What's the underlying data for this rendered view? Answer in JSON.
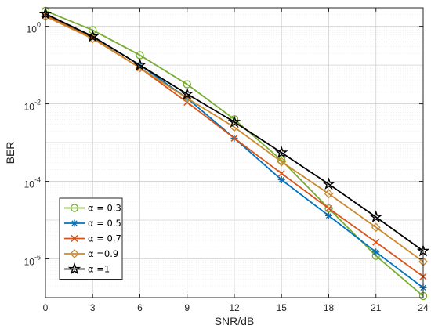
{
  "chart_data": {
    "type": "line",
    "xlabel": "SNR/dB",
    "ylabel": "BER",
    "x": [
      0,
      3,
      6,
      9,
      12,
      15,
      18,
      21,
      24
    ],
    "xlim": [
      0,
      24
    ],
    "ylim": [
      1e-07,
      3
    ],
    "y_scale": "log",
    "grid": true,
    "minor_grid": true,
    "legend_position": "lower-left",
    "x_ticks": [
      "0",
      "3",
      "6",
      "9",
      "12",
      "15",
      "18",
      "21",
      "24"
    ],
    "y_ticks": [
      {
        "value": 1,
        "base": "10",
        "exp": "0"
      },
      {
        "value": 0.01,
        "base": "10",
        "exp": "-2"
      },
      {
        "value": 0.0001,
        "base": "10",
        "exp": "-4"
      },
      {
        "value": 1e-06,
        "base": "10",
        "exp": "-6"
      }
    ],
    "series": [
      {
        "name": "α = 0.3",
        "color": "#77AC30",
        "marker": "circle",
        "values": [
          2.5,
          0.8,
          0.18,
          0.032,
          0.004,
          0.00035,
          2e-05,
          1.2e-06,
          1.1e-07
        ]
      },
      {
        "name": "α = 0.5",
        "color": "#0072BD",
        "marker": "asterisk",
        "values": [
          2.0,
          0.55,
          0.1,
          0.014,
          0.0013,
          0.00011,
          1.3e-05,
          1.5e-06,
          1.8e-07
        ]
      },
      {
        "name": "α = 0.7",
        "color": "#D95319",
        "marker": "x",
        "values": [
          1.9,
          0.5,
          0.085,
          0.011,
          0.0013,
          0.00016,
          2e-05,
          2.7e-06,
          3.5e-07
        ]
      },
      {
        "name": "α =0.9",
        "color": "#CC8A2E",
        "marker": "diamond",
        "values": [
          1.8,
          0.48,
          0.085,
          0.014,
          0.0025,
          0.00032,
          4.8e-05,
          6.5e-06,
          8.5e-07
        ]
      },
      {
        "name": "α =1",
        "color": "#000000",
        "marker": "pentagram",
        "values": [
          2.1,
          0.55,
          0.1,
          0.018,
          0.0034,
          0.00055,
          8.5e-05,
          1.2e-05,
          1.6e-06
        ]
      }
    ]
  }
}
